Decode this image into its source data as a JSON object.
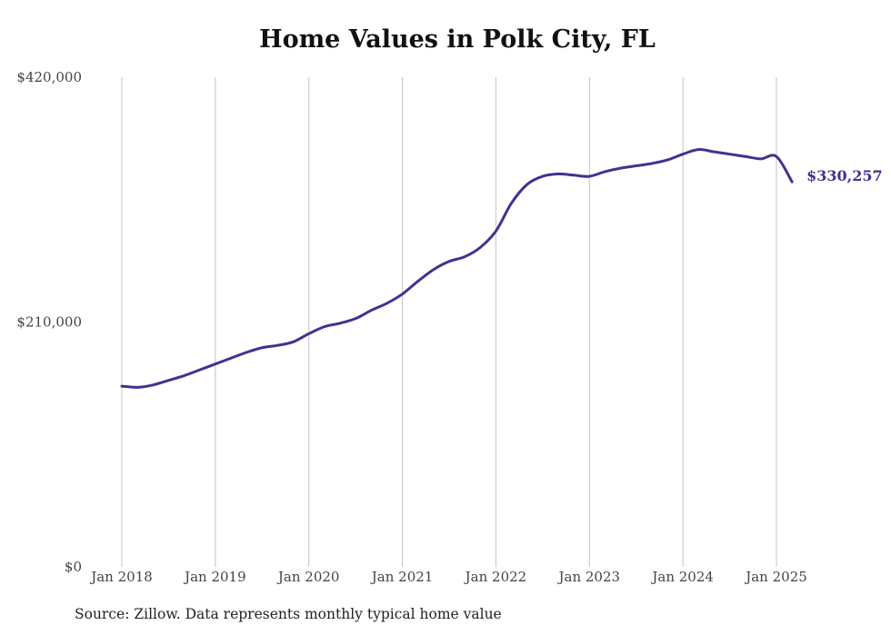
{
  "chart_data": {
    "type": "line",
    "title": "Home Values in Polk City, FL",
    "xlabel": "",
    "ylabel": "",
    "ylim": [
      0,
      420000
    ],
    "y_ticks": [
      0,
      210000,
      420000
    ],
    "y_tick_labels": [
      "$0",
      "$210,000",
      "$420,000"
    ],
    "x_range": [
      "2018-01",
      "2025-03"
    ],
    "x_ticks": [
      "2018-01",
      "2019-01",
      "2020-01",
      "2021-01",
      "2022-01",
      "2023-01",
      "2024-01",
      "2025-01"
    ],
    "x_tick_labels": [
      "Jan 2018",
      "Jan 2019",
      "Jan 2020",
      "Jan 2021",
      "Jan 2022",
      "Jan 2023",
      "Jan 2024",
      "Jan 2025"
    ],
    "grid": "vertical",
    "line_color": "#3d3490",
    "end_label": "$330,257",
    "series": [
      {
        "x": [
          "2018-01",
          "2018-03",
          "2018-05",
          "2018-07",
          "2018-09",
          "2018-11",
          "2019-01",
          "2019-03",
          "2019-05",
          "2019-07",
          "2019-09",
          "2019-11",
          "2020-01",
          "2020-03",
          "2020-05",
          "2020-07",
          "2020-09",
          "2020-11",
          "2021-01",
          "2021-03",
          "2021-05",
          "2021-07",
          "2021-09",
          "2021-11",
          "2022-01",
          "2022-03",
          "2022-05",
          "2022-07",
          "2022-09",
          "2022-11",
          "2023-01",
          "2023-03",
          "2023-05",
          "2023-07",
          "2023-09",
          "2023-11",
          "2024-01",
          "2024-03",
          "2024-05",
          "2024-07",
          "2024-09",
          "2024-11",
          "2025-01",
          "2025-03"
        ],
        "values": [
          155000,
          154000,
          156000,
          160000,
          164000,
          169000,
          174000,
          179000,
          184000,
          188000,
          190000,
          193000,
          200000,
          206000,
          209000,
          213000,
          220000,
          226000,
          234000,
          245000,
          255000,
          262000,
          266000,
          274000,
          288000,
          312000,
          328000,
          335000,
          337000,
          336000,
          335000,
          339000,
          342000,
          344000,
          346000,
          349000,
          354000,
          358000,
          356000,
          354000,
          352000,
          350000,
          352000,
          330257
        ]
      }
    ]
  },
  "source_note": "Source: Zillow. Data represents monthly typical home value"
}
